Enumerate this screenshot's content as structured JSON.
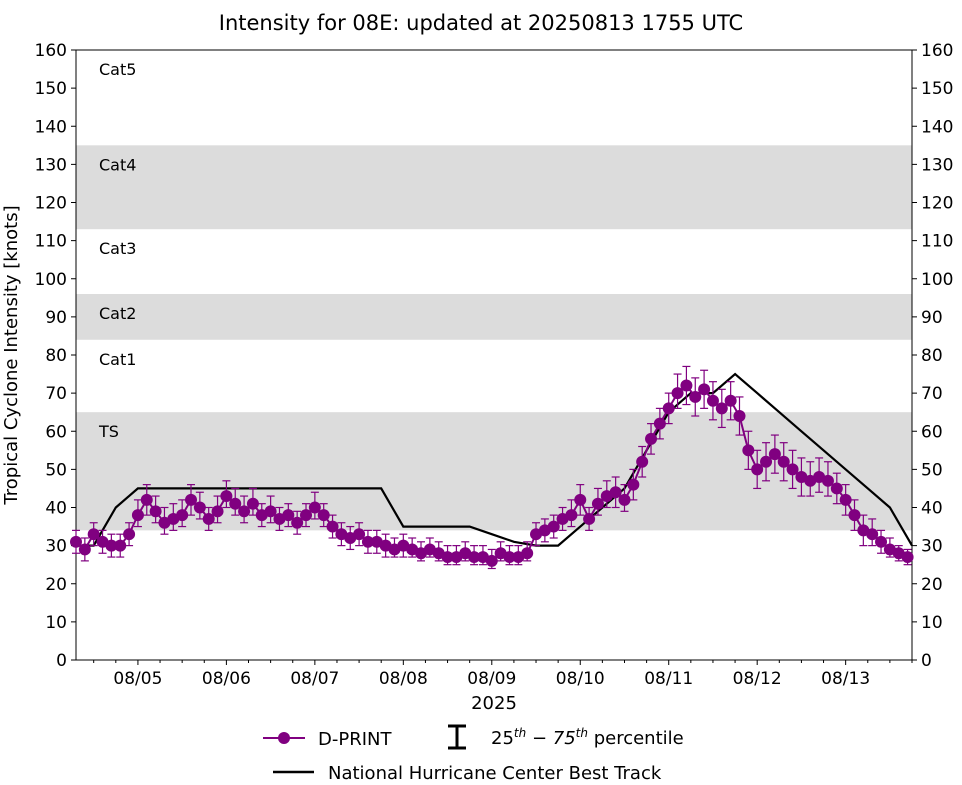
{
  "chart_data": {
    "type": "line",
    "title": "Intensity for 08E: updated at 20250813 1755 UTC",
    "xlabel": "2025",
    "ylabel": "Tropical Cyclone Intensity [knots]",
    "xlim": [
      0.3,
      9.75
    ],
    "ylim": [
      0,
      160
    ],
    "yticks": [
      0,
      10,
      20,
      30,
      40,
      50,
      60,
      70,
      80,
      90,
      100,
      110,
      120,
      130,
      140,
      150,
      160
    ],
    "xtick_labels": [
      "08/05",
      "08/06",
      "08/07",
      "08/08",
      "08/09",
      "08/10",
      "08/11",
      "08/12",
      "08/13"
    ],
    "categories": [
      {
        "name": "TS",
        "low": 34,
        "high": 65,
        "shaded": true
      },
      {
        "name": "Cat1",
        "low": 65,
        "high": 84,
        "shaded": false
      },
      {
        "name": "Cat2",
        "low": 84,
        "high": 96,
        "shaded": true
      },
      {
        "name": "Cat3",
        "low": 96,
        "high": 113,
        "shaded": false
      },
      {
        "name": "Cat4",
        "low": 113,
        "high": 135,
        "shaded": true
      },
      {
        "name": "Cat5",
        "low": 135,
        "high": 160,
        "shaded": false
      }
    ],
    "series": [
      {
        "name": "National Hurricane Center Best Track",
        "color": "#000000",
        "x": [
          0.3,
          0.5,
          0.75,
          1.0,
          1.25,
          1.5,
          1.75,
          2.0,
          2.25,
          2.5,
          2.75,
          3.0,
          3.25,
          3.5,
          3.75,
          4.0,
          4.25,
          4.5,
          4.75,
          5.0,
          5.25,
          5.5,
          5.75,
          6.0,
          6.25,
          6.5,
          6.75,
          7.0,
          7.25,
          7.5,
          7.75,
          8.0,
          8.25,
          8.5,
          8.75,
          9.0,
          9.25,
          9.5,
          9.75
        ],
        "y": [
          30,
          30,
          40,
          45,
          45,
          45,
          45,
          45,
          45,
          45,
          45,
          45,
          45,
          45,
          45,
          35,
          35,
          35,
          35,
          33,
          31,
          30,
          30,
          35,
          40,
          45,
          55,
          65,
          70,
          70,
          75,
          70,
          65,
          60,
          55,
          50,
          45,
          40,
          30
        ]
      },
      {
        "name": "D-PRINT",
        "color": "#800080",
        "x": [
          0.3,
          0.4,
          0.5,
          0.6,
          0.7,
          0.8,
          0.9,
          1.0,
          1.1,
          1.2,
          1.3,
          1.4,
          1.5,
          1.6,
          1.7,
          1.8,
          1.9,
          2.0,
          2.1,
          2.2,
          2.3,
          2.4,
          2.5,
          2.6,
          2.7,
          2.8,
          2.9,
          3.0,
          3.1,
          3.2,
          3.3,
          3.4,
          3.5,
          3.6,
          3.7,
          3.8,
          3.9,
          4.0,
          4.1,
          4.2,
          4.3,
          4.4,
          4.5,
          4.6,
          4.7,
          4.8,
          4.9,
          5.0,
          5.1,
          5.2,
          5.3,
          5.4,
          5.5,
          5.6,
          5.7,
          5.8,
          5.9,
          6.0,
          6.1,
          6.2,
          6.3,
          6.4,
          6.5,
          6.6,
          6.7,
          6.8,
          6.9,
          7.0,
          7.1,
          7.2,
          7.3,
          7.4,
          7.5,
          7.6,
          7.7,
          7.8,
          7.9,
          8.0,
          8.1,
          8.2,
          8.3,
          8.4,
          8.5,
          8.6,
          8.7,
          8.8,
          8.9,
          9.0,
          9.1,
          9.2,
          9.3,
          9.4,
          9.5,
          9.6,
          9.7
        ],
        "y": [
          31,
          29,
          33,
          31,
          30,
          30,
          33,
          38,
          42,
          39,
          36,
          37,
          38,
          42,
          40,
          37,
          39,
          43,
          41,
          39,
          41,
          38,
          39,
          37,
          38,
          36,
          38,
          40,
          38,
          35,
          33,
          32,
          33,
          31,
          31,
          30,
          29,
          30,
          29,
          28,
          29,
          28,
          27,
          27,
          28,
          27,
          27,
          26,
          28,
          27,
          27,
          28,
          33,
          34,
          35,
          37,
          38,
          42,
          37,
          41,
          43,
          44,
          42,
          46,
          52,
          58,
          62,
          66,
          70,
          72,
          69,
          71,
          68,
          66,
          68,
          64,
          55,
          50,
          52,
          54,
          52,
          50,
          48,
          47,
          48,
          47,
          45,
          42,
          38,
          34,
          33,
          31,
          29,
          28,
          27
        ],
        "q25": [
          28,
          26,
          30,
          28,
          27,
          27,
          30,
          35,
          38,
          36,
          33,
          34,
          35,
          38,
          37,
          34,
          36,
          40,
          38,
          36,
          38,
          35,
          36,
          34,
          35,
          33,
          35,
          37,
          35,
          32,
          30,
          29,
          30,
          28,
          28,
          27,
          27,
          27,
          27,
          26,
          27,
          26,
          25,
          25,
          26,
          25,
          25,
          24,
          26,
          25,
          25,
          26,
          30,
          31,
          32,
          34,
          35,
          38,
          34,
          38,
          40,
          40,
          39,
          42,
          48,
          54,
          58,
          62,
          66,
          67,
          64,
          66,
          63,
          61,
          63,
          59,
          50,
          45,
          47,
          49,
          47,
          45,
          43,
          43,
          44,
          43,
          41,
          38,
          34,
          30,
          30,
          28,
          27,
          26,
          25
        ],
        "q75": [
          34,
          32,
          36,
          34,
          33,
          33,
          36,
          42,
          46,
          43,
          40,
          41,
          42,
          46,
          44,
          40,
          43,
          47,
          45,
          43,
          45,
          41,
          43,
          40,
          41,
          39,
          41,
          44,
          41,
          38,
          36,
          35,
          36,
          34,
          34,
          33,
          32,
          33,
          32,
          31,
          32,
          31,
          30,
          30,
          31,
          30,
          30,
          29,
          31,
          30,
          30,
          31,
          36,
          37,
          38,
          40,
          42,
          46,
          40,
          45,
          47,
          48,
          46,
          50,
          56,
          62,
          66,
          70,
          75,
          77,
          74,
          76,
          73,
          71,
          73,
          69,
          60,
          55,
          57,
          59,
          57,
          55,
          53,
          52,
          53,
          52,
          49,
          46,
          42,
          38,
          37,
          34,
          32,
          30,
          29
        ]
      }
    ],
    "legend": {
      "dprint": "D-PRINT",
      "percentile_prefix": "25",
      "percentile_sup1": "th",
      "percentile_mid": " − 75",
      "percentile_sup2": "th",
      "percentile_suffix": " percentile",
      "best_track": "National Hurricane Center Best Track",
      "placement": "bottom-center"
    },
    "colors": {
      "dprint": "#800080",
      "best_track": "#000000",
      "shade": "#dcdcdc"
    }
  }
}
